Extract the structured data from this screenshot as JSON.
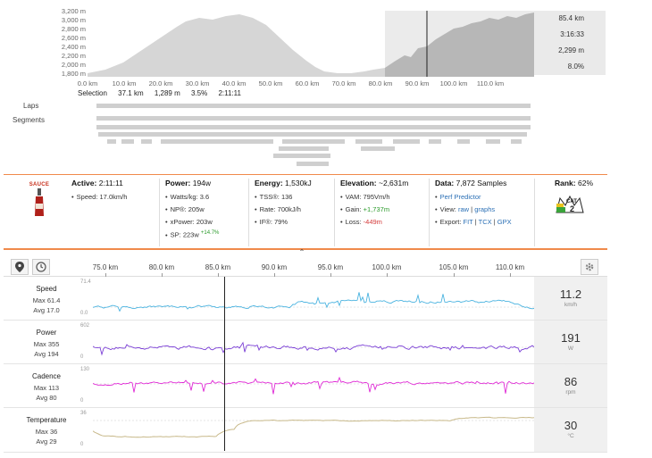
{
  "overview": {
    "y_ticks": [
      "3,200 m",
      "3,000 m",
      "2,800 m",
      "2,600 m",
      "2,400 m",
      "2,200 m",
      "2,000 m",
      "1,800 m"
    ],
    "x_ticks": [
      "0.0 km",
      "10.0 km",
      "20.0 km",
      "30.0 km",
      "40.0 km",
      "50.0 km",
      "60.0 km",
      "70.0 km",
      "80.0 km",
      "90.0 km",
      "100.0 km",
      "110.0 km"
    ],
    "readout": [
      "85.4 km",
      "3:16:33",
      "2,299 m",
      "8.0%"
    ],
    "selection": {
      "label": "Selection",
      "distance": "37.1 km",
      "gain": "1,289 m",
      "grade": "3.5%",
      "time": "2:11:11"
    },
    "laps_label": "Laps",
    "segments_label": "Segments",
    "colors": {
      "fill": "#d6d6d6",
      "selection": "#b7b7b7",
      "bg_selection": "#ebebeb"
    }
  },
  "stats": {
    "logo_text": "SAUCE",
    "active": {
      "title": "Active:",
      "value": "2:11:11",
      "items": [
        {
          "label": "Speed:",
          "value": "17.0km/h"
        }
      ]
    },
    "power": {
      "title": "Power:",
      "value": "194w",
      "items": [
        {
          "label": "Watts/kg:",
          "value": "3.6"
        },
        {
          "label": "NP®:",
          "value": "205w"
        },
        {
          "label": "xPower:",
          "value": "203w"
        },
        {
          "label": "SP:",
          "value": "223w",
          "extra": "+14.7%"
        }
      ]
    },
    "energy": {
      "title": "Energy:",
      "value": "1,530kJ",
      "items": [
        {
          "label": "TSS®:",
          "value": "136"
        },
        {
          "label": "Rate:",
          "value": "700kJ/h"
        },
        {
          "label": "IF®:",
          "value": "79%"
        }
      ]
    },
    "elevation": {
      "title": "Elevation:",
      "value": "~2,631m",
      "items": [
        {
          "label": "VAM:",
          "value": "795Vm/h"
        },
        {
          "label": "Gain:",
          "value": "+1,737m"
        },
        {
          "label": "Loss:",
          "value": "-449m"
        }
      ]
    },
    "data": {
      "title": "Data:",
      "value": "7,872 Samples",
      "perf": "Perf Predictor",
      "view_label": "View:",
      "view_raw": "raw",
      "view_sep": "|",
      "view_graphs": "graphs",
      "export_label": "Export:",
      "export_fit": "FIT",
      "export_sep1": "|",
      "export_tcx": "TCX",
      "export_sep2": "|",
      "export_gpx": "GPX"
    },
    "rank": {
      "title": "Rank:",
      "value": "62%",
      "badge_top": "CAT",
      "badge_num": "2"
    },
    "expand_glyph": "⌃"
  },
  "timeline": {
    "x_ticks": [
      "75.0 km",
      "80.0 km",
      "85.0 km",
      "90.0 km",
      "95.0 km",
      "100.0 km",
      "105.0 km",
      "110.0 km"
    ]
  },
  "streams": [
    {
      "name": "Speed",
      "max": "Max 61.4",
      "avg": "Avg 17.0",
      "axis_top": "71.4",
      "axis_bot": "0.0",
      "value": "11.2",
      "unit": "km/h",
      "color": "#4ab3e0"
    },
    {
      "name": "Power",
      "max": "Max 355",
      "avg": "Avg 194",
      "axis_top": "602",
      "axis_bot": "0",
      "value": "191",
      "unit": "W",
      "color": "#7b3fd6"
    },
    {
      "name": "Cadence",
      "max": "Max 113",
      "avg": "Avg 80",
      "axis_top": "130",
      "axis_bot": "0",
      "value": "86",
      "unit": "rpm",
      "color": "#e02ad6"
    },
    {
      "name": "Temperature",
      "max": "Max 36",
      "avg": "Avg 29",
      "axis_top": "36",
      "axis_bot": "0",
      "value": "30",
      "unit": "°C",
      "color": "#c8b98a"
    }
  ]
}
